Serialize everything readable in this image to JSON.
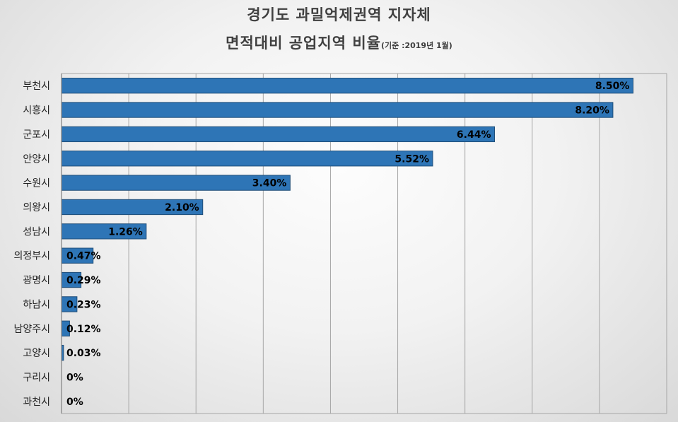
{
  "chart_data": {
    "type": "bar",
    "orientation": "horizontal",
    "title_line1": "경기도 과밀억제권역 지자체",
    "title_line2": "면적대비 공업지역 비율",
    "title_note": "(기준 :2019년 1월)",
    "categories": [
      "부천시",
      "시흥시",
      "군포시",
      "안양시",
      "수원시",
      "의왕시",
      "성남시",
      "의정부시",
      "광명시",
      "하남시",
      "남양주시",
      "고양시",
      "구리시",
      "과천시"
    ],
    "values": [
      8.5,
      8.2,
      6.44,
      5.52,
      3.4,
      2.1,
      1.26,
      0.47,
      0.29,
      0.23,
      0.12,
      0.03,
      0,
      0
    ],
    "data_labels": [
      "8.50%",
      "8.20%",
      "6.44%",
      "5.52%",
      "3.40%",
      "2.10%",
      "1.26%",
      "0.47%",
      "0.29%",
      "0.23%",
      "0.12%",
      "0.03%",
      "0%",
      "0%"
    ],
    "xlim": [
      0,
      9
    ],
    "grid": true,
    "bar_color": "#2e75b6",
    "bar_border_color": "#1f4e79",
    "grid_color": "#a6a6a6"
  }
}
